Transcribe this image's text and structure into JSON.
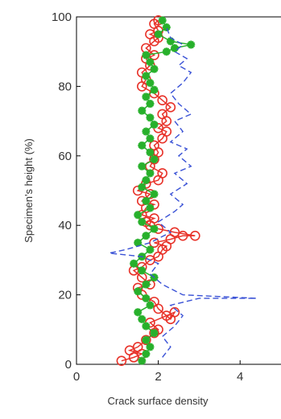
{
  "chart_data": {
    "type": "line",
    "title": "",
    "xlabel": "Crack surface density",
    "ylabel": "Specimen's height (%)",
    "xlim": [
      0,
      5
    ],
    "ylim": [
      0,
      100
    ],
    "x_ticks": [
      0,
      2,
      4
    ],
    "y_ticks": [
      0,
      20,
      40,
      60,
      80,
      100
    ],
    "grid": false,
    "colors": {
      "red": "#e8332a",
      "green": "#27b02b",
      "blue": "#3a52d6",
      "axis": "#000000"
    },
    "series": [
      {
        "marker": "circle",
        "line": "solid",
        "color": "#e8332a",
        "points": [
          [
            1.1,
            1
          ],
          [
            1.4,
            2
          ],
          [
            1.6,
            3
          ],
          [
            1.3,
            4
          ],
          [
            1.5,
            5
          ],
          [
            1.7,
            7
          ],
          [
            1.9,
            9
          ],
          [
            2.0,
            10
          ],
          [
            1.8,
            12
          ],
          [
            2.2,
            14
          ],
          [
            2.4,
            15
          ],
          [
            2.3,
            13
          ],
          [
            2.0,
            16
          ],
          [
            1.9,
            18
          ],
          [
            1.6,
            20
          ],
          [
            1.5,
            22
          ],
          [
            1.8,
            23
          ],
          [
            1.6,
            25
          ],
          [
            1.4,
            27
          ],
          [
            1.6,
            28
          ],
          [
            1.8,
            30
          ],
          [
            2.0,
            31
          ],
          [
            2.1,
            33
          ],
          [
            2.2,
            34
          ],
          [
            1.9,
            35
          ],
          [
            2.3,
            36
          ],
          [
            2.6,
            37
          ],
          [
            2.9,
            37
          ],
          [
            2.4,
            38
          ],
          [
            2.0,
            39
          ],
          [
            1.8,
            40
          ],
          [
            1.7,
            41
          ],
          [
            1.9,
            42
          ],
          [
            1.6,
            43
          ],
          [
            1.7,
            45
          ],
          [
            1.9,
            46
          ],
          [
            1.6,
            47
          ],
          [
            1.8,
            49
          ],
          [
            1.5,
            50
          ],
          [
            1.7,
            52
          ],
          [
            2.0,
            53
          ],
          [
            2.1,
            55
          ],
          [
            1.8,
            57
          ],
          [
            1.9,
            59
          ],
          [
            2.0,
            61
          ],
          [
            1.9,
            63
          ],
          [
            2.1,
            65
          ],
          [
            2.2,
            67
          ],
          [
            2.0,
            68
          ],
          [
            2.2,
            70
          ],
          [
            2.1,
            72
          ],
          [
            2.3,
            74
          ],
          [
            2.1,
            76
          ],
          [
            1.9,
            78
          ],
          [
            1.6,
            80
          ],
          [
            1.7,
            82
          ],
          [
            1.6,
            84
          ],
          [
            1.8,
            86
          ],
          [
            1.7,
            88
          ],
          [
            1.9,
            89
          ],
          [
            1.7,
            91
          ],
          [
            1.9,
            93
          ],
          [
            2.0,
            94
          ],
          [
            1.8,
            95
          ],
          [
            2.0,
            96
          ],
          [
            1.9,
            98
          ],
          [
            2.0,
            99
          ]
        ]
      },
      {
        "marker": "star",
        "line": "solid",
        "color": "#27b02b",
        "points": [
          [
            1.6,
            1
          ],
          [
            1.7,
            3
          ],
          [
            1.8,
            5
          ],
          [
            1.7,
            7
          ],
          [
            1.9,
            9
          ],
          [
            1.7,
            11
          ],
          [
            1.6,
            13
          ],
          [
            1.5,
            15
          ],
          [
            1.8,
            17
          ],
          [
            1.7,
            19
          ],
          [
            1.5,
            21
          ],
          [
            1.7,
            23
          ],
          [
            1.9,
            25
          ],
          [
            1.6,
            27
          ],
          [
            1.4,
            29
          ],
          [
            1.6,
            31
          ],
          [
            1.8,
            33
          ],
          [
            1.5,
            35
          ],
          [
            1.7,
            37
          ],
          [
            1.9,
            39
          ],
          [
            1.6,
            41
          ],
          [
            1.5,
            43
          ],
          [
            1.8,
            45
          ],
          [
            1.7,
            47
          ],
          [
            1.9,
            49
          ],
          [
            1.6,
            51
          ],
          [
            1.7,
            53
          ],
          [
            1.8,
            55
          ],
          [
            1.6,
            57
          ],
          [
            1.9,
            59
          ],
          [
            1.8,
            61
          ],
          [
            1.6,
            63
          ],
          [
            1.8,
            65
          ],
          [
            1.7,
            67
          ],
          [
            1.9,
            69
          ],
          [
            1.8,
            71
          ],
          [
            1.6,
            73
          ],
          [
            1.8,
            75
          ],
          [
            1.7,
            77
          ],
          [
            1.9,
            79
          ],
          [
            1.8,
            81
          ],
          [
            1.7,
            83
          ],
          [
            1.9,
            85
          ],
          [
            1.8,
            87
          ],
          [
            1.7,
            89
          ],
          [
            2.2,
            90
          ],
          [
            2.4,
            91
          ],
          [
            2.8,
            92
          ],
          [
            2.3,
            93
          ],
          [
            2.0,
            95
          ],
          [
            2.2,
            97
          ],
          [
            2.1,
            99
          ]
        ]
      },
      {
        "marker": "none",
        "line": "dashed",
        "color": "#3a52d6",
        "points": [
          [
            2.1,
            2
          ],
          [
            2.3,
            5
          ],
          [
            2.1,
            8
          ],
          [
            2.4,
            11
          ],
          [
            2.6,
            14
          ],
          [
            2.3,
            17
          ],
          [
            3.0,
            19
          ],
          [
            4.4,
            19
          ],
          [
            2.6,
            20
          ],
          [
            2.1,
            23
          ],
          [
            1.8,
            26
          ],
          [
            2.0,
            29
          ],
          [
            1.6,
            31
          ],
          [
            0.8,
            32
          ],
          [
            1.2,
            33
          ],
          [
            1.8,
            35
          ],
          [
            2.3,
            38
          ],
          [
            2.0,
            41
          ],
          [
            2.4,
            44
          ],
          [
            2.6,
            46
          ],
          [
            2.3,
            49
          ],
          [
            2.7,
            52
          ],
          [
            2.4,
            55
          ],
          [
            2.8,
            57
          ],
          [
            2.5,
            60
          ],
          [
            2.7,
            62
          ],
          [
            2.3,
            64
          ],
          [
            2.6,
            67
          ],
          [
            2.4,
            70
          ],
          [
            2.8,
            72
          ],
          [
            2.5,
            75
          ],
          [
            2.3,
            78
          ],
          [
            2.6,
            81
          ],
          [
            2.8,
            84
          ],
          [
            2.5,
            86
          ],
          [
            2.7,
            88
          ],
          [
            2.4,
            90
          ],
          [
            2.6,
            92
          ],
          [
            2.3,
            94
          ],
          [
            2.2,
            97
          ]
        ]
      }
    ]
  }
}
